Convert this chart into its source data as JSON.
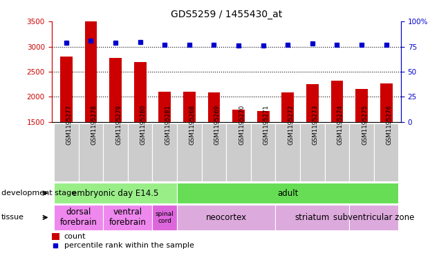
{
  "title": "GDS5259 / 1455430_at",
  "samples": [
    "GSM1195277",
    "GSM1195278",
    "GSM1195279",
    "GSM1195280",
    "GSM1195281",
    "GSM1195268",
    "GSM1195269",
    "GSM1195270",
    "GSM1195271",
    "GSM1195272",
    "GSM1195273",
    "GSM1195274",
    "GSM1195275",
    "GSM1195276"
  ],
  "counts": [
    2800,
    3500,
    2780,
    2700,
    2100,
    2100,
    2090,
    1750,
    1720,
    2090,
    2250,
    2330,
    2160,
    2270
  ],
  "percentiles": [
    79,
    81,
    79,
    80,
    77,
    77,
    77,
    76,
    76,
    77,
    78,
    77,
    77,
    77
  ],
  "ylim_left": [
    1500,
    3500
  ],
  "ylim_right": [
    0,
    100
  ],
  "yticks_left": [
    1500,
    2000,
    2500,
    3000,
    3500
  ],
  "yticks_right": [
    0,
    25,
    50,
    75,
    100
  ],
  "bar_color": "#cc0000",
  "dot_color": "#0000cc",
  "bg_color": "#ffffff",
  "ax_color_left": "#cc0000",
  "ax_color_right": "#0000cc",
  "gridline_levels": [
    2000,
    2500,
    3000
  ],
  "development_stage_groups": [
    {
      "label": "embryonic day E14.5",
      "start": 0,
      "end": 4,
      "color": "#99ee88"
    },
    {
      "label": "adult",
      "start": 5,
      "end": 13,
      "color": "#66dd55"
    }
  ],
  "tissue_groups": [
    {
      "label": "dorsal\nforebrain",
      "start": 0,
      "end": 1,
      "color": "#ee88ee"
    },
    {
      "label": "ventral\nforebrain",
      "start": 2,
      "end": 3,
      "color": "#ee88ee"
    },
    {
      "label": "spinal\ncord",
      "start": 4,
      "end": 4,
      "color": "#dd66dd"
    },
    {
      "label": "neocortex",
      "start": 5,
      "end": 8,
      "color": "#ddaadd"
    },
    {
      "label": "striatum",
      "start": 9,
      "end": 11,
      "color": "#ddaadd"
    },
    {
      "label": "subventricular zone",
      "start": 12,
      "end": 13,
      "color": "#ddaadd"
    }
  ],
  "sample_bg_color": "#cccccc",
  "sample_border_color": "#ffffff"
}
